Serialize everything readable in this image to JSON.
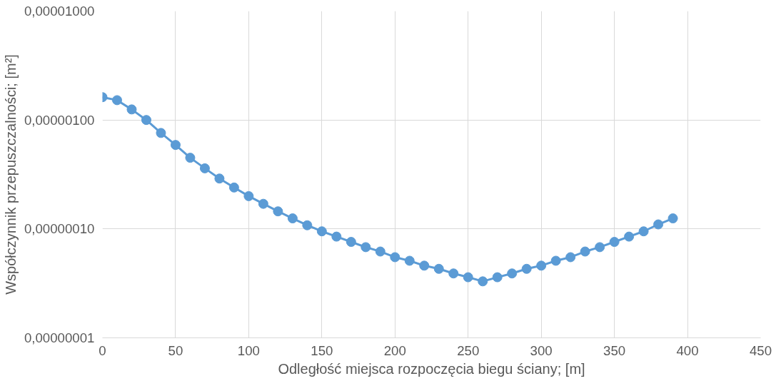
{
  "chart_data": {
    "type": "line",
    "xlabel": "Odległość miejsca rozpoczęcia biegu ściany; [m]",
    "ylabel": "Współczynnik przepuszczalności; [m²]",
    "x": [
      0,
      10,
      20,
      30,
      40,
      50,
      60,
      70,
      80,
      90,
      100,
      110,
      120,
      130,
      140,
      150,
      160,
      170,
      180,
      190,
      200,
      210,
      220,
      230,
      240,
      250,
      260,
      270,
      280,
      290,
      300,
      310,
      320,
      330,
      340,
      350,
      360,
      370,
      380,
      390
    ],
    "series": [
      {
        "color": "#5b9bd5",
        "values": [
          1.62e-06,
          1.52e-06,
          1.25e-06,
          1e-06,
          7.6e-07,
          5.9e-07,
          4.5e-07,
          3.6e-07,
          2.9e-07,
          2.4e-07,
          2e-07,
          1.7e-07,
          1.45e-07,
          1.25e-07,
          1.08e-07,
          9.5e-08,
          8.5e-08,
          7.6e-08,
          6.8e-08,
          6.2e-08,
          5.5e-08,
          5.1e-08,
          4.6e-08,
          4.3e-08,
          3.9e-08,
          3.6e-08,
          3.3e-08,
          3.6e-08,
          3.9e-08,
          4.3e-08,
          4.6e-08,
          5.1e-08,
          5.5e-08,
          6.2e-08,
          6.8e-08,
          7.6e-08,
          8.5e-08,
          9.5e-08,
          1.1e-07,
          1.25e-07
        ]
      }
    ],
    "xlim": [
      0,
      450
    ],
    "xticks": [
      0,
      50,
      100,
      150,
      200,
      250,
      300,
      350,
      400,
      450
    ],
    "ylim": [
      1e-08,
      1e-05
    ],
    "yticks": [
      {
        "value": 1e-08,
        "label": "0,00000001"
      },
      {
        "value": 1e-07,
        "label": "0,00000010"
      },
      {
        "value": 1e-06,
        "label": "0,00000100"
      },
      {
        "value": 1e-05,
        "label": "0,00001000"
      }
    ],
    "log": "y",
    "grid": true,
    "marker": "circle",
    "line_style": "solid"
  }
}
